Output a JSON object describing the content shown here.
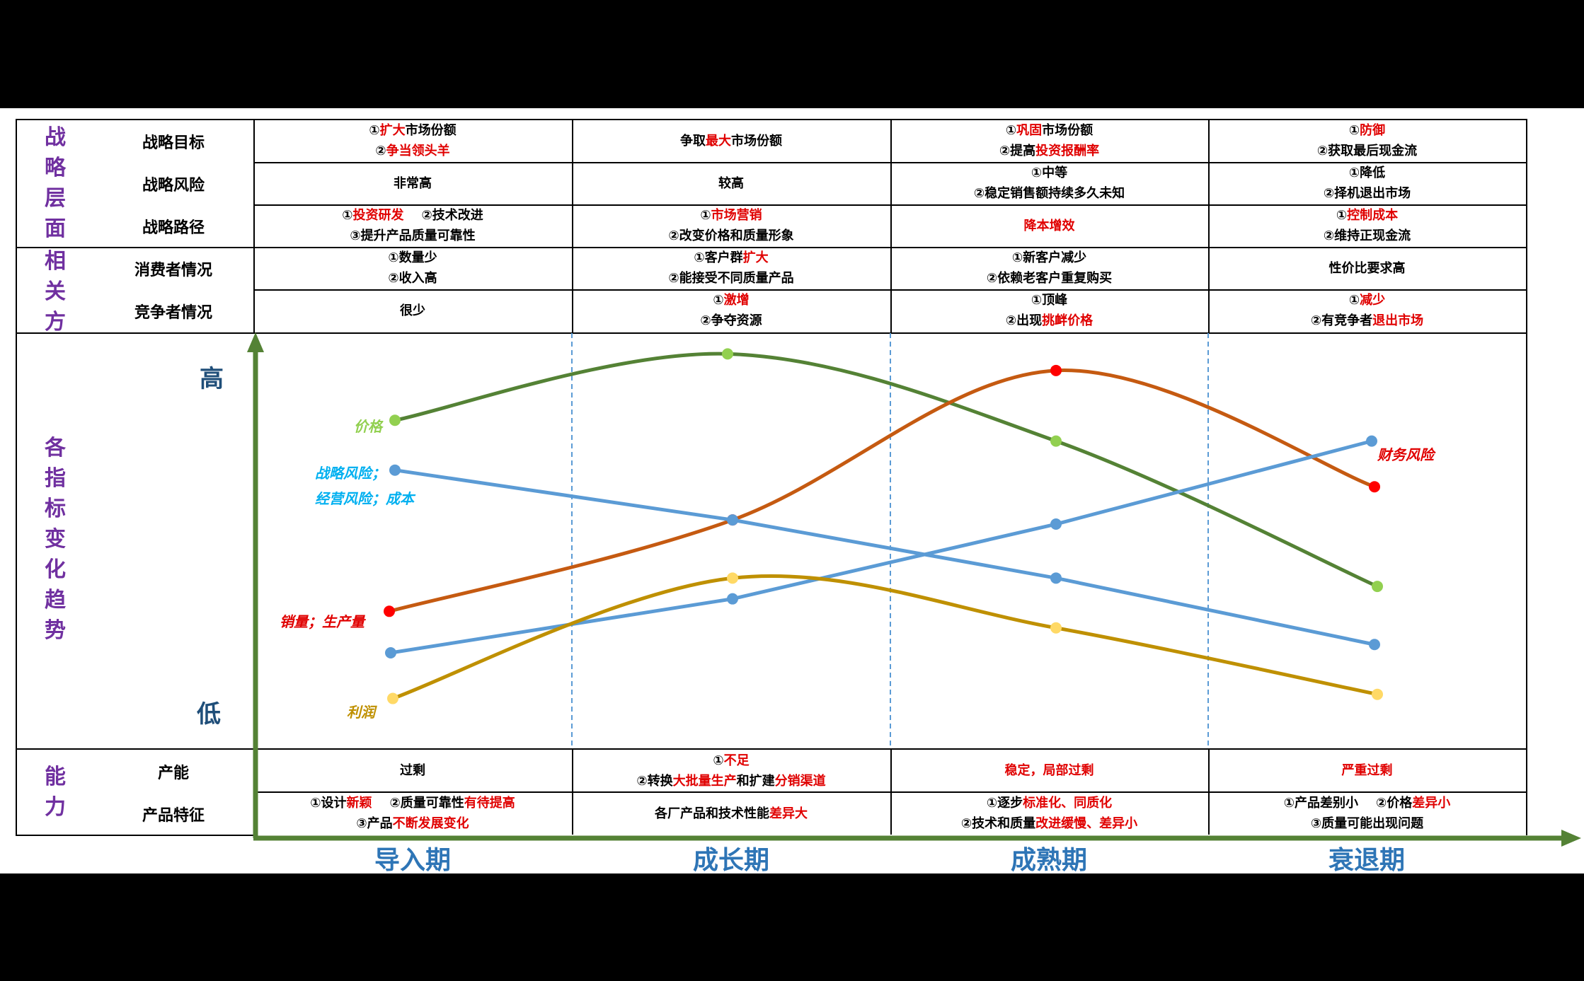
{
  "sections": {
    "strategy": [
      "战",
      "略",
      "层",
      "面"
    ],
    "stakeholders": [
      "相",
      "关",
      "方"
    ],
    "trends": [
      "各",
      "指",
      "标",
      "变",
      "化",
      "趋",
      "势"
    ],
    "capability": [
      "能",
      "力"
    ]
  },
  "axis": {
    "high": "高",
    "low": "低"
  },
  "phases": [
    "导入期",
    "成长期",
    "成熟期",
    "衰退期"
  ],
  "rows": [
    {
      "label": "战略目标",
      "cells": [
        [
          [
            [
              "①",
              ""
            ],
            [
              "扩大",
              "r"
            ],
            [
              "市场份额",
              ""
            ]
          ],
          [
            [
              "②",
              ""
            ],
            [
              "争当领头羊",
              "r"
            ]
          ]
        ],
        [
          [
            [
              "争取",
              ""
            ],
            [
              "最大",
              "r"
            ],
            [
              "市场份额",
              ""
            ]
          ]
        ],
        [
          [
            [
              "①",
              ""
            ],
            [
              "巩固",
              "r"
            ],
            [
              "市场份额",
              ""
            ]
          ],
          [
            [
              "②提高",
              ""
            ],
            [
              "投资报酬率",
              "r"
            ]
          ]
        ],
        [
          [
            [
              "①",
              ""
            ],
            [
              "防御",
              "r"
            ]
          ],
          [
            [
              "②获取最后现金流",
              ""
            ]
          ]
        ]
      ]
    },
    {
      "label": "战略风险",
      "cells": [
        [
          [
            [
              "非常高",
              ""
            ]
          ]
        ],
        [
          [
            [
              "较高",
              ""
            ]
          ]
        ],
        [
          [
            [
              "①中等",
              ""
            ]
          ],
          [
            [
              "②稳定销售额持续多久未知",
              ""
            ]
          ]
        ],
        [
          [
            [
              "①降低",
              ""
            ]
          ],
          [
            [
              "②择机退出市场",
              ""
            ]
          ]
        ]
      ]
    },
    {
      "label": "战略路径",
      "cells": [
        [
          [
            [
              "①",
              ""
            ],
            [
              "投资研发",
              "r"
            ],
            [
              "    ②技术改进",
              ""
            ]
          ],
          [
            [
              "③提升产品质量可靠性",
              ""
            ]
          ]
        ],
        [
          [
            [
              "①",
              ""
            ],
            [
              "市场营销",
              "r"
            ]
          ],
          [
            [
              "②改变价格和质量形象",
              ""
            ]
          ]
        ],
        [
          [
            [
              "降本增效",
              "r"
            ]
          ]
        ],
        [
          [
            [
              "①",
              ""
            ],
            [
              "控制成本",
              "r"
            ]
          ],
          [
            [
              "②维持正现金流",
              ""
            ]
          ]
        ]
      ]
    },
    {
      "label": "消费者情况",
      "cells": [
        [
          [
            [
              "①数量少",
              ""
            ]
          ],
          [
            [
              "②收入高",
              ""
            ]
          ]
        ],
        [
          [
            [
              "①客户群",
              ""
            ],
            [
              "扩大",
              "r"
            ]
          ],
          [
            [
              "②能接受不同质量产品",
              ""
            ]
          ]
        ],
        [
          [
            [
              "①新客户减少",
              ""
            ]
          ],
          [
            [
              "②依赖老客户重复购买",
              ""
            ]
          ]
        ],
        [
          [
            [
              "性价比要求高",
              ""
            ]
          ]
        ]
      ]
    },
    {
      "label": "竞争者情况",
      "cells": [
        [
          [
            [
              "很少",
              ""
            ]
          ]
        ],
        [
          [
            [
              "①",
              ""
            ],
            [
              "激增",
              "r"
            ]
          ],
          [
            [
              "②争夺资源",
              ""
            ]
          ]
        ],
        [
          [
            [
              "①顶峰",
              ""
            ]
          ],
          [
            [
              "②出现",
              ""
            ],
            [
              "挑衅价格",
              "r"
            ]
          ]
        ],
        [
          [
            [
              "①",
              ""
            ],
            [
              "减少",
              "r"
            ]
          ],
          [
            [
              "②有竞争者",
              ""
            ],
            [
              "退出市场",
              "r"
            ]
          ]
        ]
      ]
    },
    {
      "label": "产能",
      "cells": [
        [
          [
            [
              "过剩",
              ""
            ]
          ]
        ],
        [
          [
            [
              "①",
              ""
            ],
            [
              "不足",
              "r"
            ]
          ],
          [
            [
              "②转换",
              ""
            ],
            [
              "大批量生产",
              "r"
            ],
            [
              "和扩建",
              ""
            ],
            [
              "分销渠道",
              "r"
            ]
          ]
        ],
        [
          [
            [
              "稳定，局部过剩",
              "r"
            ]
          ]
        ],
        [
          [
            [
              "严重过剩",
              "r"
            ]
          ]
        ]
      ]
    },
    {
      "label": "产品特征",
      "cells": [
        [
          [
            [
              "①设计",
              ""
            ],
            [
              "新颖",
              "r"
            ],
            [
              "    ②质量可靠性",
              ""
            ],
            [
              "有待提高",
              "r"
            ]
          ],
          [
            [
              "③产品",
              ""
            ],
            [
              "不断发展变化",
              "r"
            ]
          ]
        ],
        [
          [
            [
              "各厂产品和技术性能",
              ""
            ],
            [
              "差异大",
              "r"
            ]
          ]
        ],
        [
          [
            [
              "①逐步",
              ""
            ],
            [
              "标准化、同质化",
              "r"
            ]
          ],
          [
            [
              "②技术和质量",
              ""
            ],
            [
              "改进缓慢、差异小",
              "r"
            ]
          ]
        ],
        [
          [
            [
              "①产品差别小    ②价格",
              ""
            ],
            [
              "差异小",
              "r"
            ]
          ],
          [
            [
              "③质量可能出现问题",
              ""
            ]
          ]
        ]
      ]
    }
  ],
  "chart_data": {
    "type": "line",
    "x": [
      "导入期",
      "成长期",
      "成熟期",
      "衰退期"
    ],
    "ylabel_high": "高",
    "ylabel_low": "低",
    "series": [
      {
        "name": "价格",
        "color": "#548235",
        "dot": "#92D050",
        "values": [
          0.79,
          0.95,
          0.74,
          0.39
        ]
      },
      {
        "name": "销量；生产量",
        "color": "#C55A11",
        "dot": "#FF0000",
        "values": [
          0.33,
          0.55,
          0.91,
          0.63
        ]
      },
      {
        "name": "战略风险；经营风险；成本",
        "color": "#5B9BD5",
        "dot": "#5B9BD5",
        "values": [
          0.67,
          0.55,
          0.41,
          0.25
        ]
      },
      {
        "name": "财务风险",
        "color": "#5B9BD5",
        "dot": "#5B9BD5",
        "values": [
          0.23,
          0.36,
          0.54,
          0.74
        ]
      },
      {
        "name": "利润",
        "color": "#BF9000",
        "dot": "#FFD966",
        "values": [
          0.12,
          0.41,
          0.29,
          0.13
        ]
      }
    ],
    "labels": {
      "price": "价格",
      "risk1": "战略风险；",
      "risk2": "经营风险；成本",
      "sales": "销量；生产量",
      "profit": "利润",
      "fin_risk": "财务风险"
    }
  }
}
